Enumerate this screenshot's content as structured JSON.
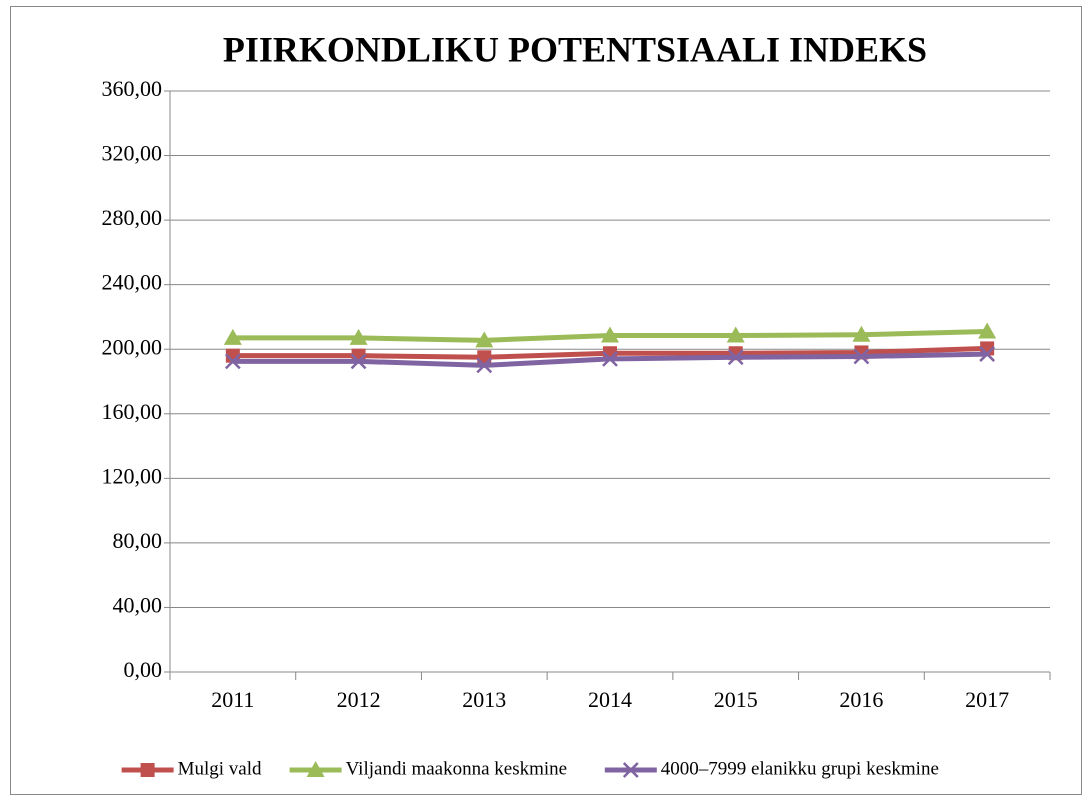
{
  "chart_data": {
    "type": "line",
    "title": "PIIRKONDLIKU POTENTSIAALI INDEKS",
    "categories": [
      "2011",
      "2012",
      "2013",
      "2014",
      "2015",
      "2016",
      "2017"
    ],
    "series": [
      {
        "name": "Mulgi vald",
        "color": "#c0504d",
        "marker": "square",
        "values": [
          196,
          196,
          195,
          197.5,
          197.5,
          198,
          200.5
        ]
      },
      {
        "name": "Viljandi maakonna keskmine",
        "color": "#9bbb59",
        "marker": "triangle",
        "values": [
          207,
          207,
          205.5,
          208.5,
          208.5,
          209,
          211
        ]
      },
      {
        "name": "4000–7999 elanikku grupi keskmine",
        "color": "#8064a2",
        "marker": "x",
        "values": [
          192.5,
          192.5,
          190,
          194,
          195,
          195.5,
          197
        ]
      }
    ],
    "ylim": [
      0,
      360
    ],
    "yticks": [
      {
        "value": 0,
        "label": "0,00"
      },
      {
        "value": 40,
        "label": "40,00"
      },
      {
        "value": 80,
        "label": "80,00"
      },
      {
        "value": 120,
        "label": "120,00"
      },
      {
        "value": 160,
        "label": "160,00"
      },
      {
        "value": 200,
        "label": "200,00"
      },
      {
        "value": 240,
        "label": "240,00"
      },
      {
        "value": 280,
        "label": "280,00"
      },
      {
        "value": 320,
        "label": "320,00"
      },
      {
        "value": 360,
        "label": "360,00"
      }
    ],
    "grid": true,
    "legend": "bottom"
  }
}
